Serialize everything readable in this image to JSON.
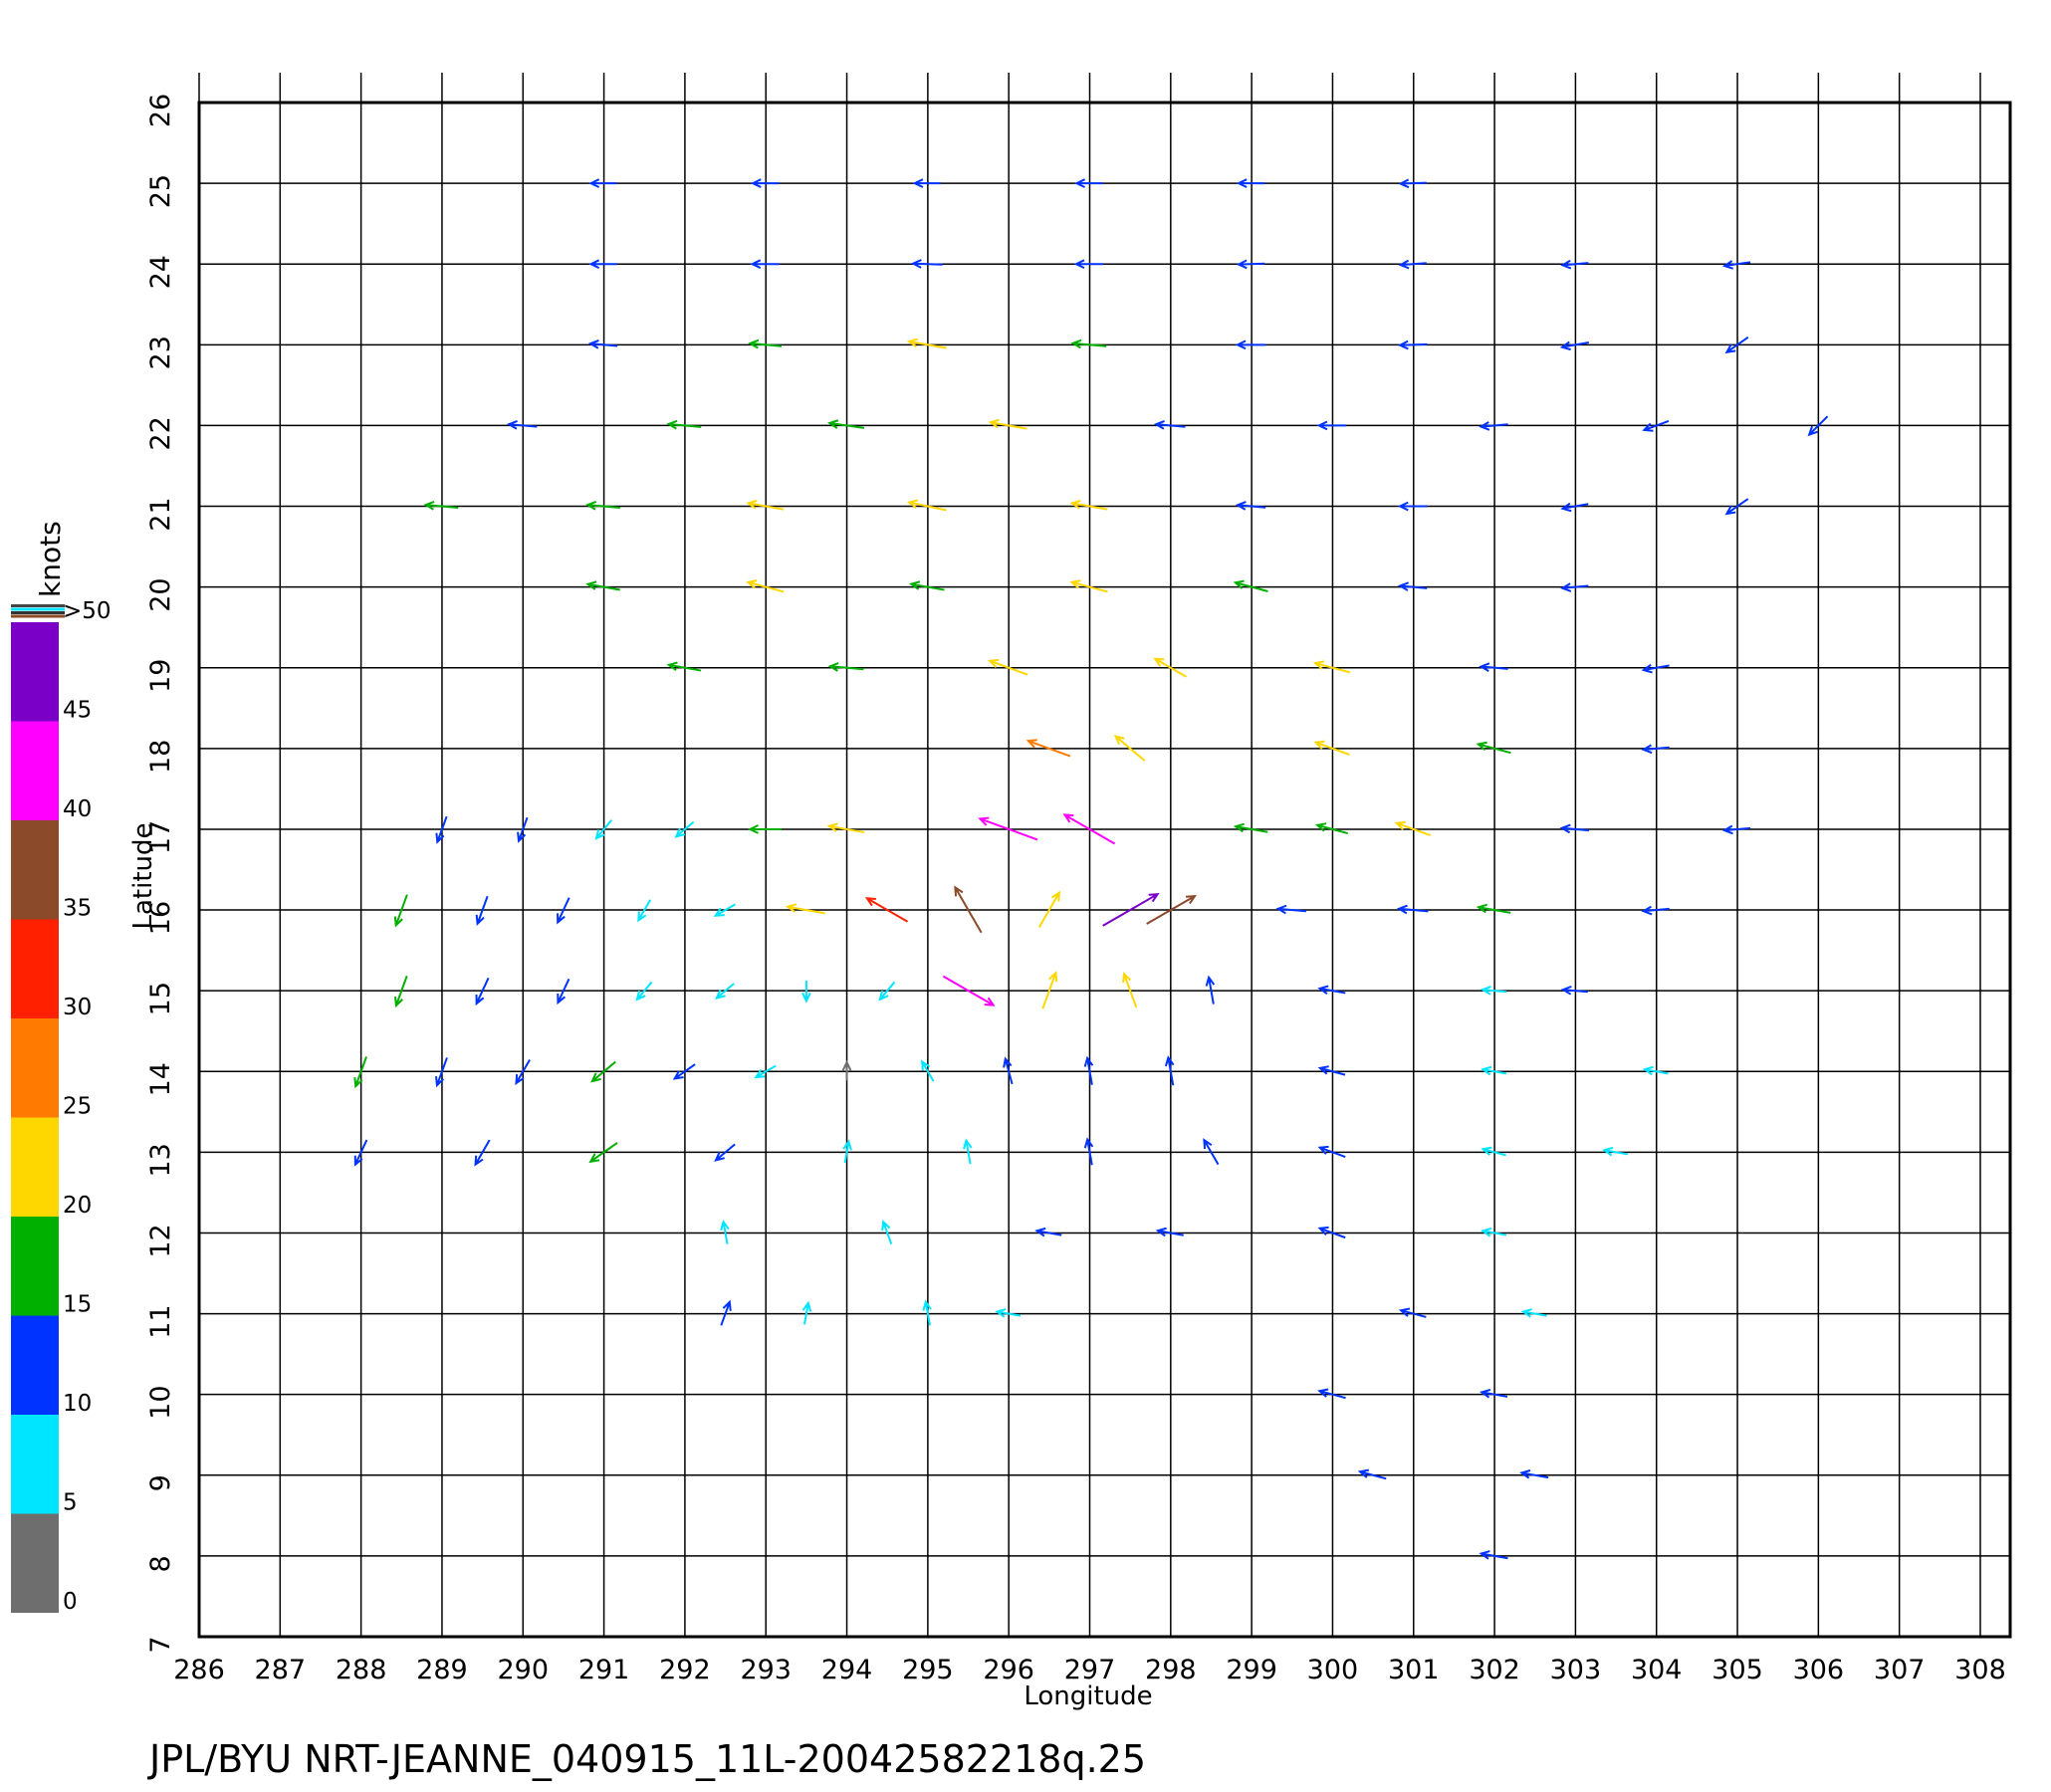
{
  "chart_data": {
    "type": "quiver",
    "title": "JPL/BYU  NRT-JEANNE_040915_11L-20042582218q.25",
    "xlabel": "Longitude",
    "ylabel": "Latitude",
    "xlim": [
      286,
      308
    ],
    "ylim": [
      7,
      26
    ],
    "xticks": [
      286,
      287,
      288,
      289,
      290,
      291,
      292,
      293,
      294,
      295,
      296,
      297,
      298,
      299,
      300,
      301,
      302,
      303,
      304,
      305,
      306,
      307,
      308
    ],
    "yticks": [
      7,
      8,
      9,
      10,
      11,
      12,
      13,
      14,
      15,
      16,
      17,
      18,
      19,
      20,
      21,
      22,
      23,
      24,
      25,
      26
    ],
    "grid": true,
    "colorbar": {
      "label": "knots",
      "lim": [
        0,
        50
      ],
      "ticks": [
        0,
        5,
        10,
        15,
        20,
        25,
        30,
        35,
        40,
        45,
        {
          "value": 50,
          "label": ">50"
        }
      ],
      "colors": [
        "#6e6e6e",
        "#00e5ff",
        "#0033ff",
        "#00b000",
        "#ffd700",
        "#ff7a00",
        "#ff2000",
        "#8b4a2a",
        "#ff00ff",
        "#7a00c8"
      ]
    },
    "vectors": [
      {
        "lon": 291,
        "lat": 25,
        "speed": 11,
        "heading": 270
      },
      {
        "lon": 293,
        "lat": 25,
        "speed": 11,
        "heading": 270
      },
      {
        "lon": 295,
        "lat": 25,
        "speed": 11,
        "heading": 270
      },
      {
        "lon": 297,
        "lat": 25,
        "speed": 11,
        "heading": 270
      },
      {
        "lon": 299,
        "lat": 25,
        "speed": 11,
        "heading": 270
      },
      {
        "lon": 301,
        "lat": 25,
        "speed": 11,
        "heading": 268
      },
      {
        "lon": 291,
        "lat": 24,
        "speed": 11,
        "heading": 270
      },
      {
        "lon": 293,
        "lat": 24,
        "speed": 12,
        "heading": 270
      },
      {
        "lon": 295,
        "lat": 24,
        "speed": 14,
        "heading": 272
      },
      {
        "lon": 297,
        "lat": 24,
        "speed": 12,
        "heading": 270
      },
      {
        "lon": 299,
        "lat": 24,
        "speed": 11,
        "heading": 268
      },
      {
        "lon": 301,
        "lat": 24,
        "speed": 11,
        "heading": 266
      },
      {
        "lon": 303,
        "lat": 24,
        "speed": 11,
        "heading": 265
      },
      {
        "lon": 305,
        "lat": 24,
        "speed": 11,
        "heading": 262
      },
      {
        "lon": 291,
        "lat": 23,
        "speed": 12,
        "heading": 275
      },
      {
        "lon": 293,
        "lat": 23,
        "speed": 16,
        "heading": 275
      },
      {
        "lon": 295,
        "lat": 23,
        "speed": 22,
        "heading": 280
      },
      {
        "lon": 297,
        "lat": 23,
        "speed": 18,
        "heading": 275
      },
      {
        "lon": 299,
        "lat": 23,
        "speed": 13,
        "heading": 270
      },
      {
        "lon": 301,
        "lat": 23,
        "speed": 12,
        "heading": 268
      },
      {
        "lon": 303,
        "lat": 23,
        "speed": 12,
        "heading": 260
      },
      {
        "lon": 305,
        "lat": 23,
        "speed": 11,
        "heading": 235
      },
      {
        "lon": 290,
        "lat": 22,
        "speed": 13,
        "heading": 275
      },
      {
        "lon": 292,
        "lat": 22,
        "speed": 17,
        "heading": 275
      },
      {
        "lon": 294,
        "lat": 22,
        "speed": 19,
        "heading": 278
      },
      {
        "lon": 296,
        "lat": 22,
        "speed": 21,
        "heading": 280
      },
      {
        "lon": 298,
        "lat": 22,
        "speed": 14,
        "heading": 275
      },
      {
        "lon": 300,
        "lat": 22,
        "speed": 12,
        "heading": 270
      },
      {
        "lon": 302,
        "lat": 22,
        "speed": 12,
        "heading": 265
      },
      {
        "lon": 304,
        "lat": 22,
        "speed": 11,
        "heading": 250
      },
      {
        "lon": 306,
        "lat": 22,
        "speed": 11,
        "heading": 225
      },
      {
        "lon": 289,
        "lat": 21,
        "speed": 17,
        "heading": 275
      },
      {
        "lon": 291,
        "lat": 21,
        "speed": 17,
        "heading": 275
      },
      {
        "lon": 293,
        "lat": 21,
        "speed": 20,
        "heading": 280
      },
      {
        "lon": 295,
        "lat": 21,
        "speed": 22,
        "heading": 282
      },
      {
        "lon": 297,
        "lat": 21,
        "speed": 20,
        "heading": 280
      },
      {
        "lon": 299,
        "lat": 21,
        "speed": 13,
        "heading": 275
      },
      {
        "lon": 301,
        "lat": 21,
        "speed": 12,
        "heading": 270
      },
      {
        "lon": 303,
        "lat": 21,
        "speed": 11,
        "heading": 260
      },
      {
        "lon": 305,
        "lat": 21,
        "speed": 11,
        "heading": 235
      },
      {
        "lon": 291,
        "lat": 20,
        "speed": 17,
        "heading": 280
      },
      {
        "lon": 293,
        "lat": 20,
        "speed": 21,
        "heading": 285
      },
      {
        "lon": 295,
        "lat": 20,
        "speed": 18,
        "heading": 280
      },
      {
        "lon": 297,
        "lat": 20,
        "speed": 21,
        "heading": 285
      },
      {
        "lon": 299,
        "lat": 20,
        "speed": 18,
        "heading": 285
      },
      {
        "lon": 301,
        "lat": 20,
        "speed": 12,
        "heading": 275
      },
      {
        "lon": 303,
        "lat": 20,
        "speed": 11,
        "heading": 265
      },
      {
        "lon": 292,
        "lat": 19,
        "speed": 17,
        "heading": 280
      },
      {
        "lon": 294,
        "lat": 19,
        "speed": 18,
        "heading": 275
      },
      {
        "lon": 296,
        "lat": 19,
        "speed": 24,
        "heading": 290
      },
      {
        "lon": 298,
        "lat": 19,
        "speed": 20,
        "heading": 300
      },
      {
        "lon": 300,
        "lat": 19,
        "speed": 20,
        "heading": 285
      },
      {
        "lon": 302,
        "lat": 19,
        "speed": 12,
        "heading": 275
      },
      {
        "lon": 304,
        "lat": 19,
        "speed": 11,
        "heading": 260
      },
      {
        "lon": 296.5,
        "lat": 18,
        "speed": 28,
        "heading": 290
      },
      {
        "lon": 297.5,
        "lat": 18,
        "speed": 22,
        "heading": 310
      },
      {
        "lon": 300,
        "lat": 18,
        "speed": 20,
        "heading": 290
      },
      {
        "lon": 302,
        "lat": 18,
        "speed": 18,
        "heading": 285
      },
      {
        "lon": 304,
        "lat": 18,
        "speed": 11,
        "heading": 265
      },
      {
        "lon": 289,
        "lat": 17,
        "speed": 12,
        "heading": 200
      },
      {
        "lon": 290,
        "lat": 17,
        "speed": 10,
        "heading": 200
      },
      {
        "lon": 291,
        "lat": 17,
        "speed": 9,
        "heading": 220
      },
      {
        "lon": 292,
        "lat": 17,
        "speed": 8,
        "heading": 230
      },
      {
        "lon": 293,
        "lat": 17,
        "speed": 16,
        "heading": 270
      },
      {
        "lon": 294,
        "lat": 17,
        "speed": 20,
        "heading": 280
      },
      {
        "lon": 296,
        "lat": 17,
        "speed": 43,
        "heading": 290
      },
      {
        "lon": 297,
        "lat": 17,
        "speed": 40,
        "heading": 300
      },
      {
        "lon": 299,
        "lat": 17,
        "speed": 17,
        "heading": 280
      },
      {
        "lon": 300,
        "lat": 17,
        "speed": 16,
        "heading": 285
      },
      {
        "lon": 301,
        "lat": 17,
        "speed": 20,
        "heading": 290
      },
      {
        "lon": 303,
        "lat": 17,
        "speed": 12,
        "heading": 275
      },
      {
        "lon": 305,
        "lat": 17,
        "speed": 11,
        "heading": 265
      },
      {
        "lon": 288.5,
        "lat": 16,
        "speed": 17,
        "heading": 200
      },
      {
        "lon": 289.5,
        "lat": 16,
        "speed": 14,
        "heading": 200
      },
      {
        "lon": 290.5,
        "lat": 16,
        "speed": 12,
        "heading": 205
      },
      {
        "lon": 291.5,
        "lat": 16,
        "speed": 9,
        "heading": 210
      },
      {
        "lon": 292.5,
        "lat": 16,
        "speed": 8,
        "heading": 240
      },
      {
        "lon": 293.5,
        "lat": 16,
        "speed": 22,
        "heading": 280
      },
      {
        "lon": 294.5,
        "lat": 16,
        "speed": 30,
        "heading": 300
      },
      {
        "lon": 295.5,
        "lat": 16,
        "speed": 35,
        "heading": 330
      },
      {
        "lon": 296.5,
        "lat": 16,
        "speed": 24,
        "heading": 30
      },
      {
        "lon": 297.5,
        "lat": 16,
        "speed": 45,
        "heading": 60
      },
      {
        "lon": 298,
        "lat": 16,
        "speed": 38,
        "heading": 60
      },
      {
        "lon": 299.5,
        "lat": 16,
        "speed": 13,
        "heading": 275
      },
      {
        "lon": 301,
        "lat": 16,
        "speed": 14,
        "heading": 275
      },
      {
        "lon": 302,
        "lat": 16,
        "speed": 17,
        "heading": 280
      },
      {
        "lon": 304,
        "lat": 16,
        "speed": 11,
        "heading": 265
      },
      {
        "lon": 288.5,
        "lat": 15,
        "speed": 16,
        "heading": 200
      },
      {
        "lon": 289.5,
        "lat": 15,
        "speed": 13,
        "heading": 205
      },
      {
        "lon": 290.5,
        "lat": 15,
        "speed": 11,
        "heading": 205
      },
      {
        "lon": 291.5,
        "lat": 15,
        "speed": 8,
        "heading": 220
      },
      {
        "lon": 292.5,
        "lat": 15,
        "speed": 8,
        "heading": 230
      },
      {
        "lon": 293.5,
        "lat": 15,
        "speed": 6,
        "heading": 180
      },
      {
        "lon": 294.5,
        "lat": 15,
        "speed": 8,
        "heading": 220
      },
      {
        "lon": 295.5,
        "lat": 15,
        "speed": 40,
        "heading": 120
      },
      {
        "lon": 296.5,
        "lat": 15,
        "speed": 22,
        "heading": 20
      },
      {
        "lon": 297.5,
        "lat": 15,
        "speed": 20,
        "heading": 340
      },
      {
        "lon": 298.5,
        "lat": 15,
        "speed": 12,
        "heading": 350
      },
      {
        "lon": 300,
        "lat": 15,
        "speed": 11,
        "heading": 280
      },
      {
        "lon": 302,
        "lat": 15,
        "speed": 9,
        "heading": 275
      },
      {
        "lon": 303,
        "lat": 15,
        "speed": 10,
        "heading": 275
      },
      {
        "lon": 288,
        "lat": 14,
        "speed": 16,
        "heading": 200
      },
      {
        "lon": 289,
        "lat": 14,
        "speed": 14,
        "heading": 200
      },
      {
        "lon": 290,
        "lat": 14,
        "speed": 12,
        "heading": 210
      },
      {
        "lon": 291,
        "lat": 14,
        "speed": 15,
        "heading": 230
      },
      {
        "lon": 292,
        "lat": 14,
        "speed": 10,
        "heading": 235
      },
      {
        "lon": 293,
        "lat": 14,
        "speed": 8,
        "heading": 240
      },
      {
        "lon": 294,
        "lat": 14,
        "speed": 4,
        "heading": 0
      },
      {
        "lon": 295,
        "lat": 14,
        "speed": 8,
        "heading": 330
      },
      {
        "lon": 296,
        "lat": 14,
        "speed": 11,
        "heading": 345
      },
      {
        "lon": 297,
        "lat": 14,
        "speed": 12,
        "heading": 350
      },
      {
        "lon": 298,
        "lat": 14,
        "speed": 13,
        "heading": 350
      },
      {
        "lon": 300,
        "lat": 14,
        "speed": 11,
        "heading": 285
      },
      {
        "lon": 302,
        "lat": 14,
        "speed": 9,
        "heading": 280
      },
      {
        "lon": 304,
        "lat": 14,
        "speed": 9,
        "heading": 280
      },
      {
        "lon": 288,
        "lat": 13,
        "speed": 12,
        "heading": 205
      },
      {
        "lon": 289.5,
        "lat": 13,
        "speed": 13,
        "heading": 210
      },
      {
        "lon": 291,
        "lat": 13,
        "speed": 17,
        "heading": 235
      },
      {
        "lon": 292.5,
        "lat": 13,
        "speed": 10,
        "heading": 230
      },
      {
        "lon": 294,
        "lat": 13,
        "speed": 7,
        "heading": 10
      },
      {
        "lon": 295.5,
        "lat": 13,
        "speed": 9,
        "heading": 350
      },
      {
        "lon": 297,
        "lat": 13,
        "speed": 11,
        "heading": 350
      },
      {
        "lon": 298.5,
        "lat": 13,
        "speed": 13,
        "heading": 330
      },
      {
        "lon": 300,
        "lat": 13,
        "speed": 12,
        "heading": 290
      },
      {
        "lon": 302,
        "lat": 13,
        "speed": 9,
        "heading": 285
      },
      {
        "lon": 303.5,
        "lat": 13,
        "speed": 9,
        "heading": 280
      },
      {
        "lon": 292.5,
        "lat": 12,
        "speed": 8,
        "heading": 350
      },
      {
        "lon": 294.5,
        "lat": 12,
        "speed": 9,
        "heading": 340
      },
      {
        "lon": 296.5,
        "lat": 12,
        "speed": 10,
        "heading": 280
      },
      {
        "lon": 298,
        "lat": 12,
        "speed": 11,
        "heading": 280
      },
      {
        "lon": 300,
        "lat": 12,
        "speed": 12,
        "heading": 290
      },
      {
        "lon": 302,
        "lat": 12,
        "speed": 9,
        "heading": 280
      },
      {
        "lon": 292.5,
        "lat": 11,
        "speed": 10,
        "heading": 20
      },
      {
        "lon": 293.5,
        "lat": 11,
        "speed": 7,
        "heading": 10
      },
      {
        "lon": 295,
        "lat": 11,
        "speed": 9,
        "heading": 350
      },
      {
        "lon": 296,
        "lat": 11,
        "speed": 9,
        "heading": 280
      },
      {
        "lon": 301,
        "lat": 11,
        "speed": 11,
        "heading": 285
      },
      {
        "lon": 302.5,
        "lat": 11,
        "speed": 9,
        "heading": 280
      },
      {
        "lon": 300,
        "lat": 10,
        "speed": 12,
        "heading": 285
      },
      {
        "lon": 302,
        "lat": 10,
        "speed": 11,
        "heading": 280
      },
      {
        "lon": 300.5,
        "lat": 9,
        "speed": 12,
        "heading": 285
      },
      {
        "lon": 302.5,
        "lat": 9,
        "speed": 12,
        "heading": 280
      },
      {
        "lon": 302,
        "lat": 8,
        "speed": 12,
        "heading": 280
      }
    ]
  }
}
